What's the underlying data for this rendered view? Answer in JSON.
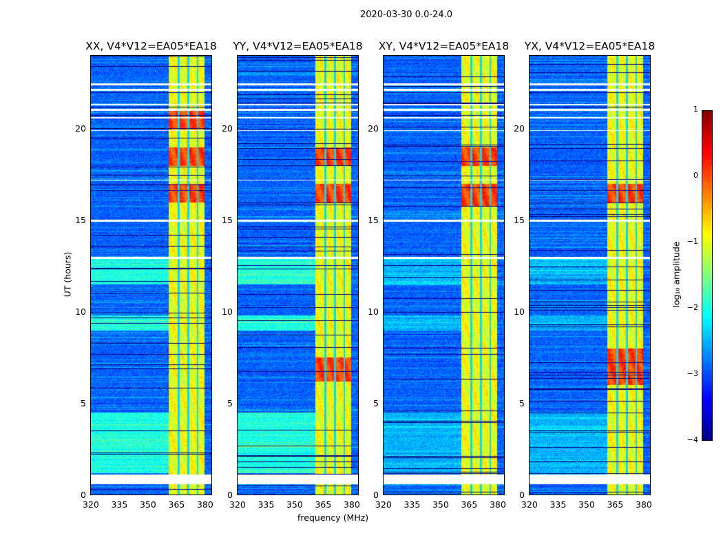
{
  "chart_data": {
    "type": "heatmap",
    "title": "2020-03-30 0.0-24.0",
    "xlabel": "frequency (MHz)",
    "ylabel": "UT (hours)",
    "xlim": [
      320,
      384
    ],
    "ylim": [
      0,
      24
    ],
    "xticks": [
      "320",
      "335",
      "350",
      "365",
      "380"
    ],
    "yticks": [
      "0",
      "5",
      "10",
      "15",
      "20"
    ],
    "panels": [
      {
        "title": "XX, V4*V12=EA05*EA18",
        "hot_hours": [
          [
            16.0,
            17.0
          ],
          [
            18.0,
            19.0
          ],
          [
            20.0,
            21.0
          ]
        ]
      },
      {
        "title": "YY, V4*V12=EA05*EA18",
        "hot_hours": [
          [
            16.0,
            17.0
          ],
          [
            18.0,
            19.0
          ],
          [
            6.2,
            7.5
          ]
        ]
      },
      {
        "title": "XY, V4*V12=EA05*EA18",
        "hot_hours": [
          [
            15.8,
            17.0
          ],
          [
            18.0,
            19.0
          ]
        ]
      },
      {
        "title": "YX, V4*V12=EA05*EA18",
        "hot_hours": [
          [
            16.0,
            17.0
          ],
          [
            6.0,
            8.0
          ]
        ]
      }
    ],
    "rfi_band_mhz": [
      361,
      380
    ],
    "band_gaps_mhz": [
      366.5,
      371.5,
      376.5
    ],
    "flagged_hours": [
      [
        0.6,
        1.1
      ],
      [
        14.95,
        15.05
      ],
      [
        22.4,
        22.5
      ],
      [
        22.1,
        22.2
      ],
      [
        21.3,
        21.4
      ],
      [
        21.0,
        21.1
      ],
      [
        20.6,
        20.65
      ],
      [
        19.9,
        19.95
      ],
      [
        17.2,
        17.25
      ],
      [
        12.9,
        13.0
      ]
    ],
    "colorbar": {
      "label": "log₁₀ amplitude",
      "colormap": "jet",
      "range": [
        -4,
        1
      ],
      "ticks": [
        "1",
        "0",
        "−1",
        "−2",
        "−3",
        "−4"
      ]
    }
  }
}
